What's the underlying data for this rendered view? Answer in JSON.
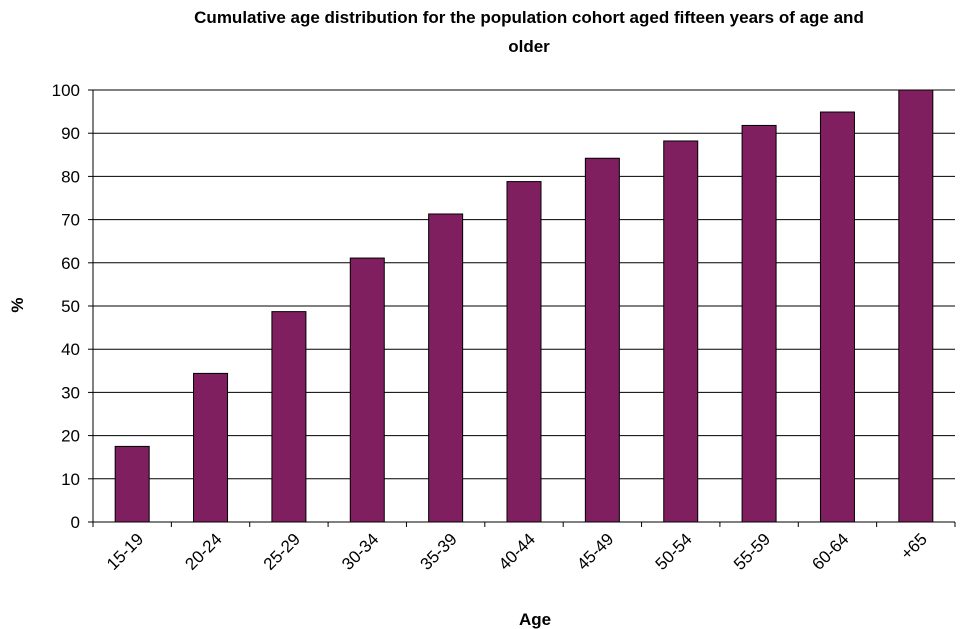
{
  "chart_data": {
    "type": "bar",
    "title_lines": [
      "Cumulative age distribution for the population cohort aged fifteen years of age and",
      "older"
    ],
    "xlabel": "Age",
    "ylabel": "%",
    "categories": [
      "15-19",
      "20-24",
      "25-29",
      "30-34",
      "35-39",
      "40-44",
      "45-49",
      "50-54",
      "55-59",
      "60-64",
      "+65"
    ],
    "values": [
      17.5,
      34.4,
      48.7,
      61.1,
      71.3,
      78.8,
      84.2,
      88.2,
      91.8,
      94.9,
      100
    ],
    "ylim": [
      0,
      100
    ],
    "yticks": [
      "0",
      "10",
      "20",
      "30",
      "40",
      "50",
      "60",
      "70",
      "80",
      "90",
      "100"
    ],
    "ytick_values": [
      0,
      10,
      20,
      30,
      40,
      50,
      60,
      70,
      80,
      90,
      100
    ],
    "grid": true,
    "legend": "none",
    "colors": {
      "bar_fill": "#7f1f5f",
      "bar_stroke": "#000000",
      "grid": "#000000",
      "axis": "#000000"
    }
  }
}
